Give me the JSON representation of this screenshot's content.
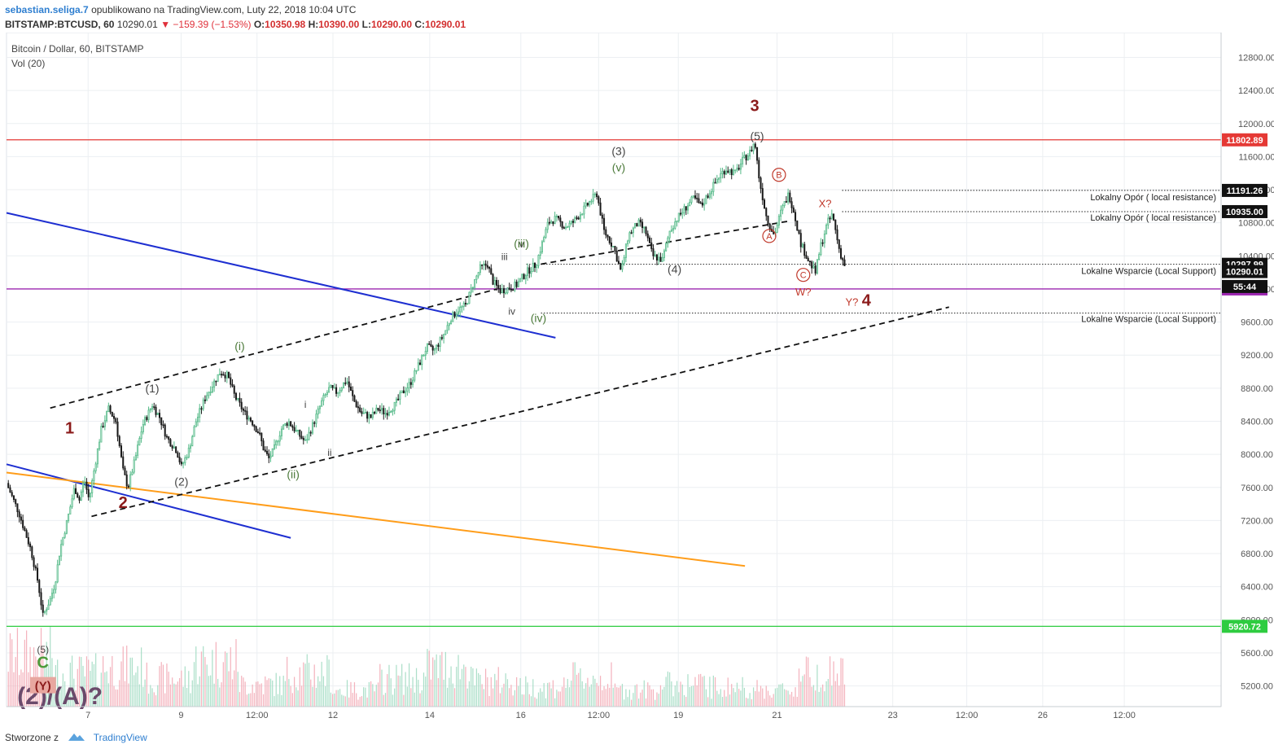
{
  "header": {
    "author": "sebastian.seliga.7",
    "published": "opublikowano na TradingView.com, Luty 22, 2018 10:04 UTC",
    "symbol": "BITSTAMP:BTCUSD, 60",
    "last": "10290.01",
    "change": "▼ −159.39 (−1.53%)",
    "ohlc": [
      {
        "label": "O:",
        "value": "10350.98"
      },
      {
        "label": "H:",
        "value": "10390.00"
      },
      {
        "label": "L:",
        "value": "10290.00"
      },
      {
        "label": "C:",
        "value": "10290.01"
      }
    ]
  },
  "legend": {
    "line1": "Bitcoin / Dollar, 60, BITSTAMP",
    "line2": "Vol (20)"
  },
  "footer": {
    "created": "Stworzone z",
    "brand": "TradingView"
  },
  "colors": {
    "up": "#53b987",
    "down": "#1a1a1a",
    "vol_up": "#9ed9bf",
    "vol_down": "#f2a6b1",
    "resistance": "#e53935",
    "support_green": "#2ecc40",
    "purple": "#9c27b0",
    "trend_blue": "#1e2fd1",
    "trend_orange": "#ff9d1a",
    "wave_red": "#8b1a1a"
  },
  "chart_data": {
    "type": "candlestick",
    "symbol": "BTCUSD",
    "interval": "60",
    "ylim": [
      4950,
      13100
    ],
    "y_ticks": [
      5200,
      5600,
      6000,
      6400,
      6800,
      7200,
      7600,
      8000,
      8400,
      8800,
      9200,
      9600,
      10000,
      10400,
      10800,
      11200,
      11600,
      12000,
      12400,
      12800
    ],
    "y_tick_labels": [
      "5200.00",
      "5600.00",
      "6000.00",
      "6400.00",
      "6800.00",
      "7200.00",
      "7600.00",
      "8000.00",
      "8400.00",
      "8800.00",
      "9200.00",
      "9600.00",
      "10000.00",
      "10400.00",
      "10800.00",
      "11200.00",
      "11600.00",
      "12000.00",
      "12400.00",
      "12800.00"
    ],
    "x_labels": [
      "7",
      "9",
      "12:00",
      "12",
      "14",
      "16",
      "12:00",
      "19",
      "21",
      "23",
      "12:00",
      "26",
      "12:00"
    ],
    "price_path": [
      [
        0,
        7650
      ],
      [
        0.5,
        7300
      ],
      [
        1,
        6850
      ],
      [
        1.3,
        6450
      ],
      [
        1.5,
        6050
      ],
      [
        1.8,
        6250
      ],
      [
        2,
        6450
      ],
      [
        2.2,
        6850
      ],
      [
        2.5,
        7200
      ],
      [
        2.8,
        7600
      ],
      [
        3,
        7450
      ],
      [
        3.2,
        7700
      ],
      [
        3.4,
        7450
      ],
      [
        3.6,
        7800
      ],
      [
        3.9,
        8300
      ],
      [
        4.2,
        8550
      ],
      [
        4.5,
        8400
      ],
      [
        4.8,
        7800
      ],
      [
        5,
        7600
      ],
      [
        5.3,
        7950
      ],
      [
        5.6,
        8350
      ],
      [
        6,
        8600
      ],
      [
        6.3,
        8450
      ],
      [
        6.6,
        8200
      ],
      [
        7,
        8050
      ],
      [
        7.2,
        7850
      ],
      [
        7.5,
        8050
      ],
      [
        7.8,
        8400
      ],
      [
        8.2,
        8700
      ],
      [
        8.5,
        8850
      ],
      [
        8.8,
        9000
      ],
      [
        9.1,
        8950
      ],
      [
        9.4,
        8700
      ],
      [
        9.8,
        8500
      ],
      [
        10.1,
        8400
      ],
      [
        10.4,
        8250
      ],
      [
        10.6,
        8050
      ],
      [
        10.8,
        7950
      ],
      [
        11,
        8050
      ],
      [
        11.3,
        8300
      ],
      [
        11.6,
        8400
      ],
      [
        12,
        8250
      ],
      [
        12.3,
        8150
      ],
      [
        12.6,
        8350
      ],
      [
        13,
        8650
      ],
      [
        13.3,
        8800
      ],
      [
        13.6,
        8750
      ],
      [
        14,
        8900
      ],
      [
        14.3,
        8650
      ],
      [
        14.6,
        8500
      ],
      [
        15,
        8450
      ],
      [
        15.3,
        8550
      ],
      [
        15.6,
        8500
      ],
      [
        16,
        8600
      ],
      [
        16.3,
        8750
      ],
      [
        16.6,
        8850
      ],
      [
        17,
        9100
      ],
      [
        17.3,
        9300
      ],
      [
        17.6,
        9250
      ],
      [
        18,
        9450
      ],
      [
        18.3,
        9650
      ],
      [
        18.6,
        9750
      ],
      [
        18.9,
        9800
      ],
      [
        19.2,
        10050
      ],
      [
        19.5,
        10250
      ],
      [
        19.8,
        10300
      ],
      [
        20,
        10100
      ],
      [
        20.3,
        9980
      ],
      [
        20.6,
        10000
      ],
      [
        21,
        10050
      ],
      [
        21.4,
        10200
      ],
      [
        21.8,
        10300
      ],
      [
        22,
        10500
      ],
      [
        22.3,
        10800
      ],
      [
        22.6,
        10850
      ],
      [
        23,
        10750
      ],
      [
        23.3,
        10800
      ],
      [
        23.6,
        10900
      ],
      [
        24,
        11050
      ],
      [
        24.3,
        11150
      ],
      [
        24.6,
        10700
      ],
      [
        25,
        10500
      ],
      [
        25.3,
        10200
      ],
      [
        25.6,
        10650
      ],
      [
        26,
        10800
      ],
      [
        26.3,
        10700
      ],
      [
        26.6,
        10400
      ],
      [
        27,
        10350
      ],
      [
        27.3,
        10700
      ],
      [
        27.6,
        10850
      ],
      [
        28,
        11000
      ],
      [
        28.3,
        11100
      ],
      [
        28.6,
        11000
      ],
      [
        29,
        11200
      ],
      [
        29.3,
        11350
      ],
      [
        29.6,
        11450
      ],
      [
        30,
        11400
      ],
      [
        30.3,
        11550
      ],
      [
        30.6,
        11650
      ],
      [
        30.8,
        11780
      ],
      [
        31,
        11300
      ],
      [
        31.3,
        10850
      ],
      [
        31.6,
        10650
      ],
      [
        31.9,
        10950
      ],
      [
        32.2,
        11150
      ],
      [
        32.4,
        10950
      ],
      [
        32.7,
        10550
      ],
      [
        33,
        10350
      ],
      [
        33.3,
        10200
      ],
      [
        33.5,
        10500
      ],
      [
        33.8,
        10800
      ],
      [
        34,
        10900
      ],
      [
        34.3,
        10450
      ],
      [
        34.5,
        10290
      ]
    ],
    "volume_levels": [
      0.9,
      0.6,
      0.7,
      0.5,
      0.8,
      0.4,
      0.6,
      0.3,
      0.5,
      0.7,
      0.45,
      0.35,
      0.5,
      0.3,
      0.4,
      0.35,
      0.3,
      0.6,
      0.25
    ],
    "series": [
      {
        "name": "Lokalny Opór ( local resistance)",
        "value": 11191.26
      },
      {
        "name": "Lokalny Opór ( local resistance)",
        "value": 10935.0
      },
      {
        "name": "Lokalne Wsparcie (Local Support)",
        "value": 10297.99
      },
      {
        "name": "Lokalne Wsparcie (Local Support)",
        "value": 9707.51
      }
    ],
    "horizontal_levels": [
      {
        "label": "11802.89",
        "value": 11802.89,
        "color": "#e53935"
      },
      {
        "label": "10000.00",
        "value": 10000.0,
        "color": "#9c27b0"
      },
      {
        "label": "5920.72",
        "value": 5920.72,
        "color": "#2ecc40"
      }
    ],
    "axis_badges": [
      {
        "label": "11191.26",
        "value": 11191.26
      },
      {
        "label": "10935.00",
        "value": 10935.0
      },
      {
        "label": "10297.99",
        "value": 10297.99
      },
      {
        "label": "10290.01",
        "value": 10210.0
      },
      {
        "label": "55:44",
        "value": 10030.0
      }
    ],
    "support_labels": [
      {
        "text": "Lokalny Opór ( local resistance)",
        "value": 11191.26
      },
      {
        "text": "Lokalny Opór ( local resistance)",
        "value": 10935.0
      },
      {
        "text": "Lokalne Wsparcie (Local Support)",
        "value": 10297.99
      },
      {
        "text": "Lokalne Wsparcie (Local Support)",
        "value": 9707.51
      }
    ],
    "wave_labels": [
      {
        "text": "1",
        "t": 2.6,
        "v": 8250,
        "color": "#8b1a1a",
        "size": 20
      },
      {
        "text": "2",
        "t": 4.8,
        "v": 7350,
        "color": "#8b1a1a",
        "size": 20
      },
      {
        "text": "3",
        "t": 30.8,
        "v": 12150,
        "color": "#8b1a1a",
        "size": 20
      },
      {
        "text": "4",
        "t": 35.4,
        "v": 9800,
        "color": "#8b1a1a",
        "size": 20
      },
      {
        "text": "Y?",
        "t": 34.8,
        "v": 9800,
        "color": "#c0392b",
        "size": 13
      },
      {
        "text": "(1)",
        "t": 6.0,
        "v": 8750,
        "color": "#444",
        "size": 14
      },
      {
        "text": "(2)",
        "t": 7.2,
        "v": 7620,
        "color": "#444",
        "size": 14
      },
      {
        "text": "(3)",
        "t": 25.2,
        "v": 11620,
        "color": "#444",
        "size": 14
      },
      {
        "text": "(4)",
        "t": 27.5,
        "v": 10190,
        "color": "#444",
        "size": 14
      },
      {
        "text": "(5)",
        "t": 30.9,
        "v": 11800,
        "color": "#444",
        "size": 14
      },
      {
        "text": "(i)",
        "t": 9.6,
        "v": 9260,
        "color": "#4c7a3a",
        "size": 14
      },
      {
        "text": "(ii)",
        "t": 11.8,
        "v": 7710,
        "color": "#4c7a3a",
        "size": 14
      },
      {
        "text": "(iii)",
        "t": 21.2,
        "v": 10500,
        "color": "#4c7a3a",
        "size": 14
      },
      {
        "text": "(iv)",
        "t": 21.9,
        "v": 9600,
        "color": "#4c7a3a",
        "size": 14
      },
      {
        "text": "(v)",
        "t": 25.2,
        "v": 11420,
        "color": "#4c7a3a",
        "size": 14
      },
      {
        "text": "i",
        "t": 12.3,
        "v": 8560,
        "color": "#444",
        "size": 12
      },
      {
        "text": "ii",
        "t": 13.3,
        "v": 7980,
        "color": "#444",
        "size": 12
      },
      {
        "text": "iii",
        "t": 20.5,
        "v": 10350,
        "color": "#444",
        "size": 12
      },
      {
        "text": "iv",
        "t": 20.8,
        "v": 9690,
        "color": "#444",
        "size": 12
      },
      {
        "text": "v",
        "t": 21.2,
        "v": 10500,
        "color": "#444",
        "size": 12
      },
      {
        "text": "X?",
        "t": 33.7,
        "v": 10990,
        "color": "#c0392b",
        "size": 13
      },
      {
        "text": "W?",
        "t": 32.8,
        "v": 9920,
        "color": "#c0392b",
        "size": 13
      },
      {
        "text": "(5)",
        "t": 1.5,
        "v": 5600,
        "color": "#444",
        "size": 12
      },
      {
        "text": "C",
        "t": 1.5,
        "v": 5420,
        "color": "#4c9a3a",
        "size": 20
      },
      {
        "text": "(2)/(A)?",
        "t": 2.2,
        "v": 4980,
        "color": "#6b4a6b",
        "size": 30
      }
    ],
    "circled_labels": [
      {
        "text": "A",
        "t": 31.4,
        "v": 10640
      },
      {
        "text": "B",
        "t": 31.8,
        "v": 11380
      },
      {
        "text": "C",
        "t": 32.8,
        "v": 10170
      }
    ],
    "box_label": {
      "text": "(Y)",
      "t": 1.5,
      "v": 5170
    },
    "trend_lines": [
      {
        "name": "blue-upper",
        "color": "#1e2fd1",
        "dash": false,
        "p1": [
          0,
          10920
        ],
        "p2": [
          22.6,
          9410
        ]
      },
      {
        "name": "blue-lower",
        "color": "#1e2fd1",
        "dash": false,
        "p1": [
          0,
          7880
        ],
        "p2": [
          11.7,
          6990
        ]
      },
      {
        "name": "orange",
        "color": "#ff9d1a",
        "dash": false,
        "p1": [
          0,
          7780
        ],
        "p2": [
          30.4,
          6650
        ]
      },
      {
        "name": "channel-upper",
        "color": "#111111",
        "dash": true,
        "p1": [
          1.8,
          8560
        ],
        "p2": [
          20.2,
          10000
        ]
      },
      {
        "name": "channel-lower",
        "color": "#111111",
        "dash": true,
        "p1": [
          3.5,
          7250
        ],
        "p2": [
          38.8,
          9780
        ]
      },
      {
        "name": "channel-mid",
        "color": "#111111",
        "dash": true,
        "p1": [
          22.0,
          10300
        ],
        "p2": [
          32.2,
          10820
        ]
      }
    ]
  }
}
